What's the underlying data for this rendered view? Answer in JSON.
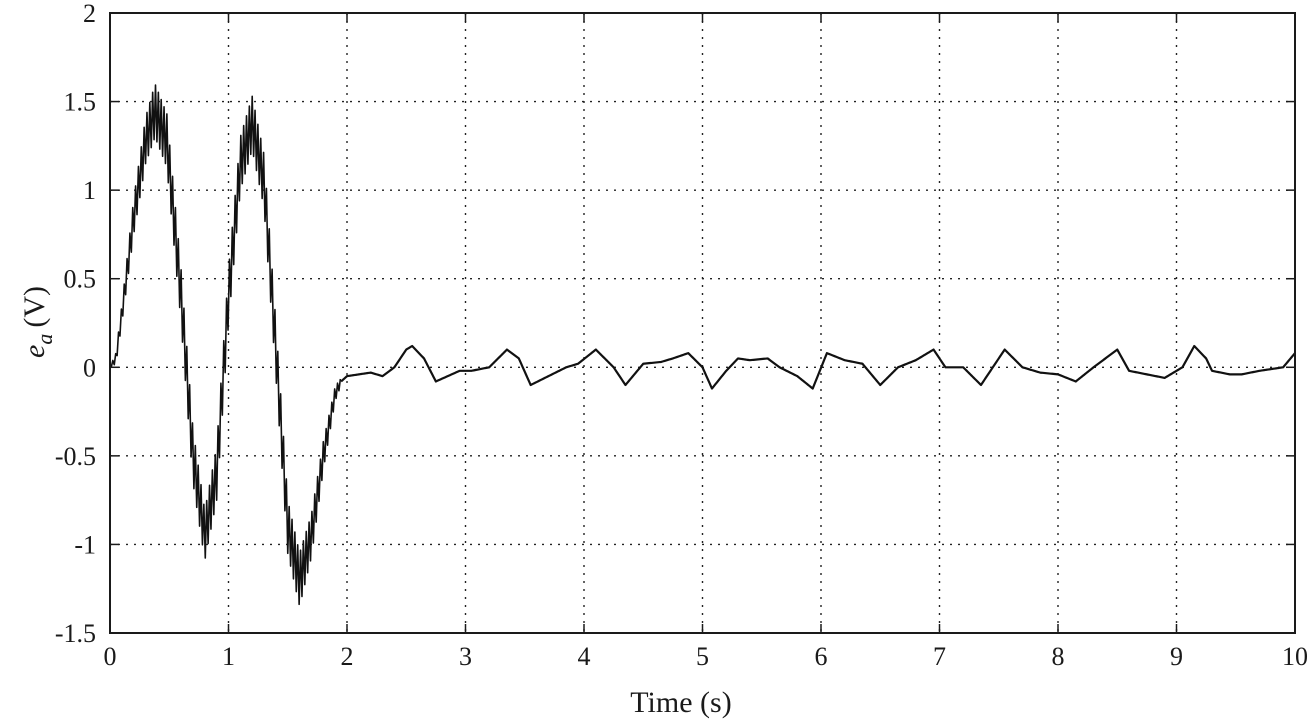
{
  "chart_data": {
    "type": "line",
    "xlabel": "Time (s)",
    "ylabel": {
      "variable": "e",
      "subscript": "a",
      "unit": "(V)"
    },
    "xlim": [
      0,
      10
    ],
    "ylim": [
      -1.5,
      2
    ],
    "xticks": [
      0,
      1,
      2,
      3,
      4,
      5,
      6,
      7,
      8,
      9,
      10
    ],
    "yticks": [
      -1.5,
      -1,
      -0.5,
      0,
      0.5,
      1,
      1.5,
      2
    ],
    "xtick_labels": [
      "0",
      "1",
      "2",
      "3",
      "4",
      "5",
      "6",
      "7",
      "8",
      "9",
      "10"
    ],
    "ytick_labels": [
      "-1.5",
      "-1",
      "-0.5",
      "0",
      "0.5",
      "1",
      "1.5",
      "2"
    ],
    "grid": true,
    "grid_style": "dotted",
    "line_color": "#111111",
    "series": [
      {
        "x": [
          0,
          0.05,
          0.1,
          0.2,
          0.3,
          0.38,
          0.48,
          0.6,
          0.7,
          0.8,
          0.9,
          1.0,
          1.1,
          1.2,
          1.3,
          1.4,
          1.5,
          1.6,
          1.7,
          1.8,
          1.9,
          1.95
        ],
        "y": [
          0,
          0.05,
          0.3,
          0.85,
          1.28,
          1.45,
          1.28,
          0.4,
          -0.5,
          -0.95,
          -0.6,
          0.4,
          1.15,
          1.38,
          1.05,
          0.1,
          -0.9,
          -1.2,
          -0.95,
          -0.5,
          -0.15,
          -0.08
        ],
        "envelope": [
          0,
          0.03,
          0.05,
          0.1,
          0.13,
          0.15,
          0.15,
          0.15,
          0.15,
          0.14,
          0.15,
          0.15,
          0.15,
          0.15,
          0.15,
          0.15,
          0.15,
          0.15,
          0.12,
          0.08,
          0.04,
          0.02
        ]
      },
      {
        "x": [
          1.95,
          2.0,
          2.1,
          2.2,
          2.3,
          2.4,
          2.5,
          2.55,
          2.65,
          2.75,
          2.85,
          2.95,
          3.05,
          3.2,
          3.35,
          3.45,
          3.55,
          3.7,
          3.85,
          3.95,
          4.1,
          4.25,
          4.35,
          4.5,
          4.65,
          4.75,
          4.88,
          5.0,
          5.08,
          5.2,
          5.3,
          5.4,
          5.55,
          5.65,
          5.8,
          5.93,
          6.05,
          6.2,
          6.35,
          6.5,
          6.65,
          6.8,
          6.95,
          7.05,
          7.2,
          7.35,
          7.55,
          7.7,
          7.85,
          8.0,
          8.15,
          8.3,
          8.5,
          8.6,
          8.75,
          8.9,
          9.05,
          9.15,
          9.25,
          9.3,
          9.45,
          9.55,
          9.7,
          9.8,
          9.9,
          10.0
        ],
        "y": [
          -0.08,
          -0.05,
          -0.04,
          -0.03,
          -0.05,
          0.0,
          0.1,
          0.12,
          0.05,
          -0.08,
          -0.05,
          -0.02,
          -0.02,
          0.0,
          0.1,
          0.05,
          -0.1,
          -0.05,
          0.0,
          0.02,
          0.1,
          0.0,
          -0.1,
          0.02,
          0.03,
          0.05,
          0.08,
          0.0,
          -0.12,
          -0.02,
          0.05,
          0.04,
          0.05,
          0.0,
          -0.05,
          -0.12,
          0.08,
          0.04,
          0.02,
          -0.1,
          0.0,
          0.04,
          0.1,
          0.0,
          0.0,
          -0.1,
          0.1,
          0.0,
          -0.03,
          -0.04,
          -0.08,
          0.0,
          0.1,
          -0.02,
          -0.04,
          -0.06,
          0.0,
          0.12,
          0.05,
          -0.02,
          -0.04,
          -0.04,
          -0.02,
          -0.01,
          0.0,
          0.08
        ]
      }
    ]
  }
}
